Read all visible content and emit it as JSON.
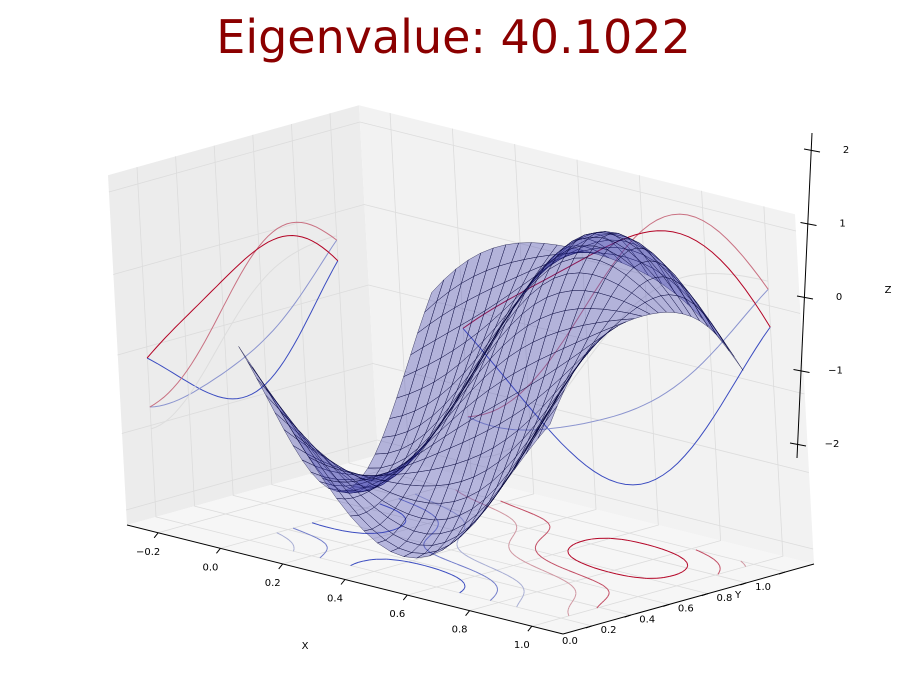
{
  "title": "Eigenvalue: 40.1022",
  "colors": {
    "title": "#8b0000",
    "surface_fill": "#4040b0",
    "surface_edge": "#000033",
    "pane_side": "#ececec",
    "pane_back": "#f2f2f2",
    "pane_floor": "#f6f6f6",
    "grid": "#dcdcdc"
  },
  "chart_data": {
    "type": "surface3d",
    "title": "Eigenvalue: 40.1022",
    "xlabel": "X",
    "ylabel": "Y",
    "zlabel": "Z",
    "xlim": [
      -0.3,
      1.1
    ],
    "ylim": [
      -0.15,
      1.15
    ],
    "zlim": [
      -2.2,
      2.2
    ],
    "xticks": [
      "−0.2",
      "0.0",
      "0.2",
      "0.4",
      "0.6",
      "0.8",
      "1.0"
    ],
    "yticks": [
      "0.0",
      "0.2",
      "0.4",
      "0.6",
      "0.8",
      "1.0"
    ],
    "zticks": [
      "−2",
      "−1",
      "0",
      "1",
      "2"
    ],
    "xtick_values": [
      -0.2,
      0.0,
      0.2,
      0.4,
      0.6,
      0.8,
      1.0
    ],
    "ytick_values": [
      0.0,
      0.2,
      0.4,
      0.6,
      0.8,
      1.0
    ],
    "ztick_values": [
      -2,
      -1,
      0,
      1,
      2
    ],
    "surface": {
      "x_range": [
        0,
        1
      ],
      "y_range": [
        0,
        1
      ],
      "grid_size": 24,
      "function": "z = -1.6*sin(pi*(x+y)) + 0.3*cos(2*pi*(x-y))",
      "alpha": 0.35
    },
    "contour_projections": {
      "offsets": {
        "z_floor": -2.2,
        "x_wall": -0.3,
        "y_wall": 1.15
      },
      "levels": [
        -1.5,
        -1.0,
        -0.5,
        0.5,
        1.0,
        1.5
      ],
      "colormap": "coolwarm"
    },
    "grid": true
  }
}
